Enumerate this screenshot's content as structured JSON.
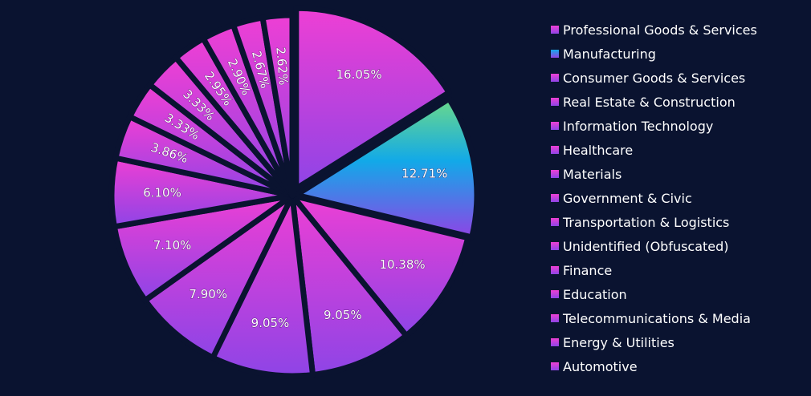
{
  "chart_data": {
    "type": "pie",
    "title": "",
    "legend_position": "right",
    "categories": [
      "Professional Goods & Services",
      "Manufacturing",
      "Consumer Goods & Services",
      "Real Estate & Construction",
      "Information Technology",
      "Healthcare",
      "Materials",
      "Government & Civic",
      "Transportation & Logistics",
      "Unidentified (Obfuscated)",
      "Finance",
      "Education",
      "Telecommunications & Media",
      "Energy & Utilities",
      "Automotive"
    ],
    "values": [
      16.05,
      12.71,
      10.38,
      9.05,
      9.05,
      7.9,
      7.1,
      6.1,
      3.86,
      3.33,
      3.33,
      2.95,
      2.9,
      2.67,
      2.62
    ],
    "labels": [
      "16.05%",
      "12.71%",
      "10.38%",
      "9.05%",
      "9.05%",
      "7.90%",
      "7.10%",
      "6.10%",
      "3.86%",
      "3.33%",
      "3.33%",
      "2.95%",
      "2.90%",
      "2.67%",
      "2.62%"
    ],
    "colors": {
      "default_gradient": [
        "#ee3fd4",
        "#8e44e6"
      ],
      "manufacturing_gradient": [
        "#6bd98a",
        "#12a9e8",
        "#8e44e6"
      ],
      "background": "#0a1330",
      "separator": "#0a1330"
    }
  }
}
